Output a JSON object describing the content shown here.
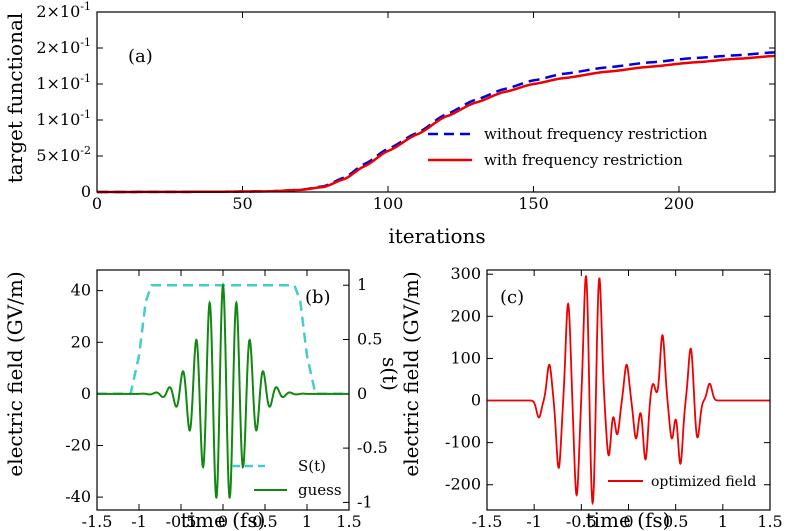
{
  "chart_data": [
    {
      "type": "line",
      "panel_label": "(a)",
      "xlabel": "iterations",
      "ylabel": "target functional",
      "xlim": [
        0,
        233
      ],
      "ylim": [
        0,
        0.25
      ],
      "xticks": [
        0,
        50,
        100,
        150,
        200
      ],
      "xtick_labels": [
        "0",
        "50",
        "100",
        "150",
        "200"
      ],
      "yticks": [
        0,
        0.05,
        0.1,
        0.15,
        0.2,
        0.25
      ],
      "ytick_labels": [
        "0",
        "5×10",
        "1×10",
        "1×10",
        "2×10",
        "2×10"
      ],
      "ytick_exponents": [
        "",
        "-2",
        "-1",
        "-1",
        "-1",
        "-1"
      ],
      "legend_position": "lower-right",
      "series": [
        {
          "name": "without frequency restriction",
          "color": "#0000dd",
          "style": "dashed",
          "x": [
            0,
            40,
            60,
            70,
            78,
            85,
            92,
            100,
            110,
            120,
            130,
            140,
            150,
            160,
            175,
            190,
            205,
            220,
            233
          ],
          "y": [
            0,
            0.0003,
            0.001,
            0.003,
            0.008,
            0.02,
            0.039,
            0.06,
            0.082,
            0.108,
            0.128,
            0.143,
            0.155,
            0.164,
            0.173,
            0.18,
            0.186,
            0.19,
            0.194
          ]
        },
        {
          "name": "with frequency restriction",
          "color": "#ee0000",
          "style": "solid",
          "x": [
            0,
            40,
            60,
            70,
            78,
            85,
            92,
            100,
            110,
            120,
            130,
            140,
            150,
            160,
            175,
            190,
            205,
            220,
            233
          ],
          "y": [
            0,
            0.0003,
            0.001,
            0.003,
            0.007,
            0.018,
            0.036,
            0.057,
            0.08,
            0.105,
            0.124,
            0.139,
            0.15,
            0.158,
            0.167,
            0.174,
            0.18,
            0.185,
            0.189
          ]
        }
      ]
    },
    {
      "type": "line",
      "panel_label": "(b)",
      "xlabel": "time (fs)",
      "ylabel": "electric field (GV/m)",
      "y2label": "s(t)",
      "xlim": [
        -1.5,
        1.5
      ],
      "ylim": [
        -45,
        48
      ],
      "y2lim": [
        -1.07,
        1.14
      ],
      "xticks": [
        -1.5,
        -1,
        -0.5,
        0,
        0.5,
        1,
        1.5
      ],
      "xtick_labels": [
        "-1.5",
        "-1",
        "-0.5",
        "0",
        "0.5",
        "1",
        "1.5"
      ],
      "yticks": [
        -40,
        -20,
        0,
        20,
        40
      ],
      "ytick_labels": [
        "-40",
        "-20",
        "0",
        "20",
        "40"
      ],
      "y2ticks": [
        -1,
        -0.5,
        0,
        0.5,
        1
      ],
      "y2tick_labels": [
        "-1",
        "-0.5",
        "0",
        "0.5",
        "1"
      ],
      "legend_position": "lower-right",
      "series": [
        {
          "name": "S(t)",
          "color": "#44cccc",
          "style": "dashed",
          "axis": "right",
          "x": [
            -1.5,
            -1.1,
            -1.0,
            -0.92,
            -0.85,
            0.85,
            0.92,
            1.0,
            1.1,
            1.5
          ],
          "y": [
            0,
            0,
            0.35,
            0.85,
            1,
            1,
            0.85,
            0.35,
            0,
            0
          ]
        },
        {
          "name": "guess",
          "color": "#118811",
          "style": "solid",
          "axis": "left",
          "model": "gaussian-cosine",
          "amplitude": 42,
          "width_fs": 0.27,
          "period_fs": 0.16
        }
      ]
    },
    {
      "type": "line",
      "panel_label": "(c)",
      "xlabel": "time (fs)",
      "ylabel": "electric field (GV/m)",
      "xlim": [
        -1.5,
        1.5
      ],
      "ylim": [
        -260,
        310
      ],
      "xticks": [
        -1.5,
        -1,
        -0.5,
        0,
        0.5,
        1,
        1.5
      ],
      "xtick_labels": [
        "-1.5",
        "-1",
        "-0.5",
        "0",
        "0.5",
        "1",
        "1.5"
      ],
      "yticks": [
        -200,
        -100,
        0,
        100,
        200,
        300
      ],
      "ytick_labels": [
        "-200",
        "-100",
        "0",
        "100",
        "200",
        "300"
      ],
      "legend_position": "lower-right",
      "series": [
        {
          "name": "optimized field",
          "color": "#ee0000",
          "style": "solid",
          "model": "pulse-sum",
          "width_fs": 0.025,
          "t": [
            -0.95,
            -0.84,
            -0.74,
            -0.64,
            -0.55,
            -0.45,
            -0.38,
            -0.31,
            -0.21,
            -0.12,
            -0.02,
            0.08,
            0.18,
            0.26,
            0.36,
            0.46,
            0.55,
            0.66,
            0.73,
            0.86
          ],
          "amp": [
            -40,
            85,
            -160,
            230,
            -225,
            300,
            -255,
            295,
            -130,
            -80,
            85,
            -90,
            -140,
            40,
            155,
            -90,
            -150,
            125,
            -90,
            40
          ]
        }
      ]
    }
  ]
}
